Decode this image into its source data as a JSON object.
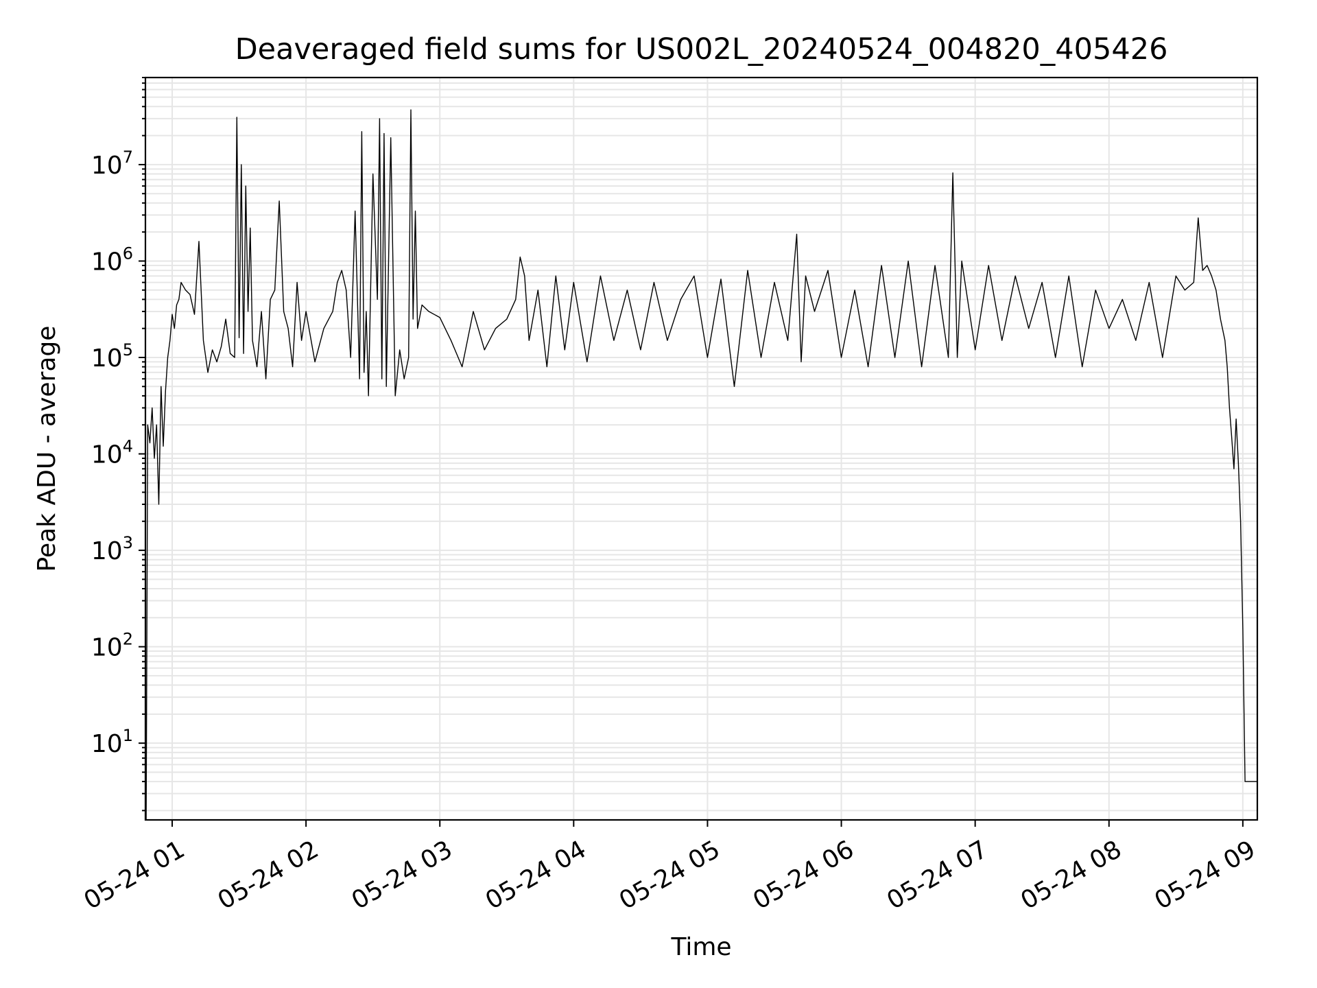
{
  "chart_data": {
    "type": "line",
    "title": "Deaveraged field sums for US002L_20240524_004820_405426",
    "xlabel": "Time",
    "ylabel": "Peak ADU - average",
    "y_scale": "log",
    "ylim": [
      1.6,
      80000000
    ],
    "xlim": [
      "2024-05-24T00:48:00",
      "2024-05-24T09:06:30"
    ],
    "grid": true,
    "x_ticks": [
      {
        "value": "2024-05-24T01:00:00",
        "label": "05-24 01"
      },
      {
        "value": "2024-05-24T02:00:00",
        "label": "05-24 02"
      },
      {
        "value": "2024-05-24T03:00:00",
        "label": "05-24 03"
      },
      {
        "value": "2024-05-24T04:00:00",
        "label": "05-24 04"
      },
      {
        "value": "2024-05-24T05:00:00",
        "label": "05-24 05"
      },
      {
        "value": "2024-05-24T06:00:00",
        "label": "05-24 06"
      },
      {
        "value": "2024-05-24T07:00:00",
        "label": "05-24 07"
      },
      {
        "value": "2024-05-24T08:00:00",
        "label": "05-24 08"
      },
      {
        "value": "2024-05-24T09:00:00",
        "label": "05-24 09"
      }
    ],
    "y_ticks": [
      {
        "value": 10,
        "base": "10",
        "exp": "1"
      },
      {
        "value": 100,
        "base": "10",
        "exp": "2"
      },
      {
        "value": 1000,
        "base": "10",
        "exp": "3"
      },
      {
        "value": 10000,
        "base": "10",
        "exp": "4"
      },
      {
        "value": 100000,
        "base": "10",
        "exp": "5"
      },
      {
        "value": 1000000,
        "base": "10",
        "exp": "6"
      },
      {
        "value": 10000000,
        "base": "10",
        "exp": "7"
      }
    ],
    "series": [
      {
        "color": "#000000",
        "x": [
          "2024-05-24T00:48:20",
          "2024-05-24T00:49:00",
          "2024-05-24T00:50:00",
          "2024-05-24T00:51:00",
          "2024-05-24T00:52:00",
          "2024-05-24T00:53:00",
          "2024-05-24T00:54:00",
          "2024-05-24T00:55:00",
          "2024-05-24T00:56:00",
          "2024-05-24T00:57:00",
          "2024-05-24T00:58:00",
          "2024-05-24T00:59:00",
          "2024-05-24T01:00:00",
          "2024-05-24T01:01:00",
          "2024-05-24T01:02:00",
          "2024-05-24T01:03:00",
          "2024-05-24T01:04:00",
          "2024-05-24T01:06:00",
          "2024-05-24T01:08:00",
          "2024-05-24T01:10:00",
          "2024-05-24T01:12:00",
          "2024-05-24T01:14:00",
          "2024-05-24T01:16:00",
          "2024-05-24T01:18:00",
          "2024-05-24T01:20:00",
          "2024-05-24T01:22:00",
          "2024-05-24T01:24:00",
          "2024-05-24T01:26:00",
          "2024-05-24T01:28:00",
          "2024-05-24T01:29:00",
          "2024-05-24T01:30:00",
          "2024-05-24T01:31:00",
          "2024-05-24T01:32:00",
          "2024-05-24T01:33:00",
          "2024-05-24T01:34:00",
          "2024-05-24T01:35:00",
          "2024-05-24T01:36:00",
          "2024-05-24T01:38:00",
          "2024-05-24T01:40:00",
          "2024-05-24T01:42:00",
          "2024-05-24T01:44:00",
          "2024-05-24T01:46:00",
          "2024-05-24T01:48:00",
          "2024-05-24T01:50:00",
          "2024-05-24T01:52:00",
          "2024-05-24T01:54:00",
          "2024-05-24T01:56:00",
          "2024-05-24T01:58:00",
          "2024-05-24T02:00:00",
          "2024-05-24T02:04:00",
          "2024-05-24T02:08:00",
          "2024-05-24T02:12:00",
          "2024-05-24T02:14:00",
          "2024-05-24T02:16:00",
          "2024-05-24T02:18:00",
          "2024-05-24T02:20:00",
          "2024-05-24T02:22:00",
          "2024-05-24T02:24:00",
          "2024-05-24T02:25:00",
          "2024-05-24T02:26:00",
          "2024-05-24T02:27:00",
          "2024-05-24T02:28:00",
          "2024-05-24T02:30:00",
          "2024-05-24T02:32:00",
          "2024-05-24T02:33:00",
          "2024-05-24T02:34:00",
          "2024-05-24T02:35:00",
          "2024-05-24T02:36:00",
          "2024-05-24T02:38:00",
          "2024-05-24T02:40:00",
          "2024-05-24T02:42:00",
          "2024-05-24T02:44:00",
          "2024-05-24T02:46:00",
          "2024-05-24T02:47:00",
          "2024-05-24T02:48:00",
          "2024-05-24T02:49:00",
          "2024-05-24T02:50:00",
          "2024-05-24T02:52:00",
          "2024-05-24T02:55:00",
          "2024-05-24T03:00:00",
          "2024-05-24T03:05:00",
          "2024-05-24T03:10:00",
          "2024-05-24T03:15:00",
          "2024-05-24T03:20:00",
          "2024-05-24T03:25:00",
          "2024-05-24T03:30:00",
          "2024-05-24T03:34:00",
          "2024-05-24T03:36:00",
          "2024-05-24T03:38:00",
          "2024-05-24T03:40:00",
          "2024-05-24T03:44:00",
          "2024-05-24T03:48:00",
          "2024-05-24T03:52:00",
          "2024-05-24T03:56:00",
          "2024-05-24T04:00:00",
          "2024-05-24T04:06:00",
          "2024-05-24T04:12:00",
          "2024-05-24T04:18:00",
          "2024-05-24T04:24:00",
          "2024-05-24T04:30:00",
          "2024-05-24T04:36:00",
          "2024-05-24T04:42:00",
          "2024-05-24T04:48:00",
          "2024-05-24T04:54:00",
          "2024-05-24T05:00:00",
          "2024-05-24T05:06:00",
          "2024-05-24T05:12:00",
          "2024-05-24T05:18:00",
          "2024-05-24T05:24:00",
          "2024-05-24T05:30:00",
          "2024-05-24T05:36:00",
          "2024-05-24T05:40:00",
          "2024-05-24T05:42:00",
          "2024-05-24T05:44:00",
          "2024-05-24T05:48:00",
          "2024-05-24T05:54:00",
          "2024-05-24T06:00:00",
          "2024-05-24T06:06:00",
          "2024-05-24T06:12:00",
          "2024-05-24T06:18:00",
          "2024-05-24T06:24:00",
          "2024-05-24T06:30:00",
          "2024-05-24T06:36:00",
          "2024-05-24T06:42:00",
          "2024-05-24T06:48:00",
          "2024-05-24T06:50:00",
          "2024-05-24T06:52:00",
          "2024-05-24T06:54:00",
          "2024-05-24T07:00:00",
          "2024-05-24T07:06:00",
          "2024-05-24T07:12:00",
          "2024-05-24T07:18:00",
          "2024-05-24T07:24:00",
          "2024-05-24T07:30:00",
          "2024-05-24T07:36:00",
          "2024-05-24T07:42:00",
          "2024-05-24T07:48:00",
          "2024-05-24T07:54:00",
          "2024-05-24T08:00:00",
          "2024-05-24T08:06:00",
          "2024-05-24T08:12:00",
          "2024-05-24T08:18:00",
          "2024-05-24T08:24:00",
          "2024-05-24T08:30:00",
          "2024-05-24T08:34:00",
          "2024-05-24T08:38:00",
          "2024-05-24T08:40:00",
          "2024-05-24T08:42:00",
          "2024-05-24T08:44:00",
          "2024-05-24T08:46:00",
          "2024-05-24T08:48:00",
          "2024-05-24T08:50:00",
          "2024-05-24T08:52:00",
          "2024-05-24T08:53:00",
          "2024-05-24T08:54:00",
          "2024-05-24T08:55:00",
          "2024-05-24T08:56:00",
          "2024-05-24T08:57:00",
          "2024-05-24T08:58:00",
          "2024-05-24T08:59:00",
          "2024-05-24T09:00:00",
          "2024-05-24T09:01:00",
          "2024-05-24T09:03:00",
          "2024-05-24T09:05:00",
          "2024-05-24T09:06:30"
        ],
        "y": [
          1.6,
          20000,
          13000,
          30000,
          9000,
          20000,
          3000,
          50000,
          12000,
          45000,
          100000,
          150000,
          280000,
          200000,
          350000,
          400000,
          600000,
          500000,
          450000,
          280000,
          1600000,
          150000,
          70000,
          120000,
          90000,
          130000,
          250000,
          110000,
          100000,
          31000000,
          160000,
          10000000,
          110000,
          6000000,
          300000,
          2200000,
          150000,
          80000,
          300000,
          60000,
          400000,
          500000,
          4200000,
          300000,
          200000,
          80000,
          600000,
          150000,
          300000,
          90000,
          200000,
          300000,
          600000,
          800000,
          500000,
          100000,
          3300000,
          60000,
          22000000,
          70000,
          300000,
          40000,
          8000000,
          400000,
          30000000,
          60000,
          21000000,
          50000,
          19000000,
          40000,
          120000,
          60000,
          100000,
          37000000,
          250000,
          3300000,
          200000,
          350000,
          300000,
          260000,
          150000,
          80000,
          300000,
          120000,
          200000,
          250000,
          400000,
          1100000,
          700000,
          150000,
          500000,
          80000,
          700000,
          120000,
          600000,
          90000,
          700000,
          150000,
          500000,
          120000,
          600000,
          150000,
          400000,
          700000,
          100000,
          650000,
          50000,
          800000,
          100000,
          600000,
          150000,
          1900000,
          90000,
          700000,
          300000,
          800000,
          100000,
          500000,
          80000,
          900000,
          100000,
          1000000,
          80000,
          900000,
          100000,
          8200000,
          100000,
          1000000,
          120000,
          900000,
          150000,
          700000,
          200000,
          600000,
          100000,
          700000,
          80000,
          500000,
          200000,
          400000,
          150000,
          600000,
          100000,
          700000,
          500000,
          600000,
          2800000,
          800000,
          900000,
          700000,
          500000,
          250000,
          150000,
          80000,
          30000,
          15000,
          7000,
          23000,
          8000,
          2000,
          150,
          4,
          4,
          4,
          4
        ]
      }
    ]
  }
}
